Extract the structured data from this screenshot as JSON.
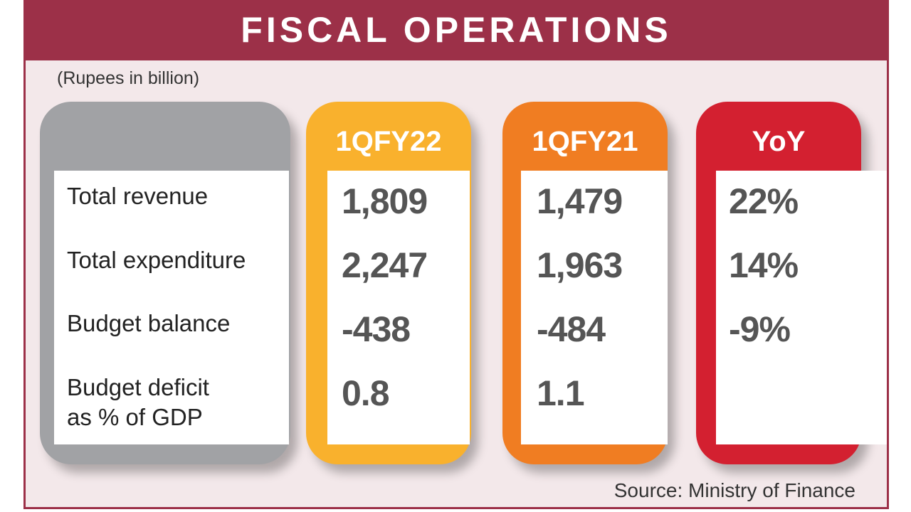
{
  "title": "FISCAL OPERATIONS",
  "units": "(Rupees in billion)",
  "source": "Source: Ministry of Finance",
  "colors": {
    "banner": "#9c3048",
    "col_1QFY22": "#f9b12d",
    "col_1QFY21": "#f07d22",
    "col_YoY": "#d32030",
    "label_column": "#a1a2a5"
  },
  "chart_data": {
    "type": "table",
    "columns": [
      "1QFY22",
      "1QFY21",
      "YoY"
    ],
    "rows": [
      {
        "label": "Total revenue",
        "values": [
          "1,809",
          "1,479",
          "22%"
        ]
      },
      {
        "label": "Total expenditure",
        "values": [
          "2,247",
          "1,963",
          "14%"
        ]
      },
      {
        "label": "Budget balance",
        "values": [
          "-438",
          "-484",
          "-9%"
        ]
      },
      {
        "label_lines": [
          "Budget deficit",
          "as % of GDP"
        ],
        "values": [
          "0.8",
          "1.1",
          ""
        ]
      }
    ]
  }
}
